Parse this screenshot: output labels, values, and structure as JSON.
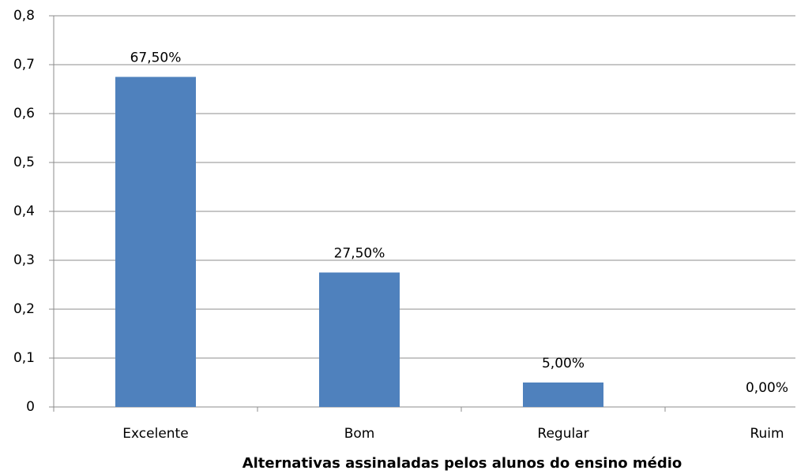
{
  "chart_data": {
    "type": "bar",
    "x_label": "Alternativas assinaladas pelos alunos do ensino médio",
    "categories": [
      "Excelente",
      "Bom",
      "Regular",
      "Ruim"
    ],
    "values": [
      0.675,
      0.275,
      0.05,
      0
    ],
    "value_labels": [
      "67,50%",
      "27,50%",
      "5,00%",
      "0,00%"
    ],
    "color": "#4f81bd",
    "ylim": [
      0,
      0.8
    ],
    "yticks": [
      0,
      {
        "value": 0.1,
        "label": "0,1"
      },
      {
        "value": 0.2,
        "label": "0,2"
      },
      {
        "value": 0.3,
        "label": "0,3"
      },
      {
        "value": 0.4,
        "label": "0,4"
      },
      {
        "value": 0.5,
        "label": "0,5"
      },
      {
        "value": 0.6,
        "label": "0,6"
      },
      {
        "value": 0.7,
        "label": "0,7"
      },
      {
        "value": 0.8,
        "label": "0,8"
      }
    ],
    "grid": true
  }
}
